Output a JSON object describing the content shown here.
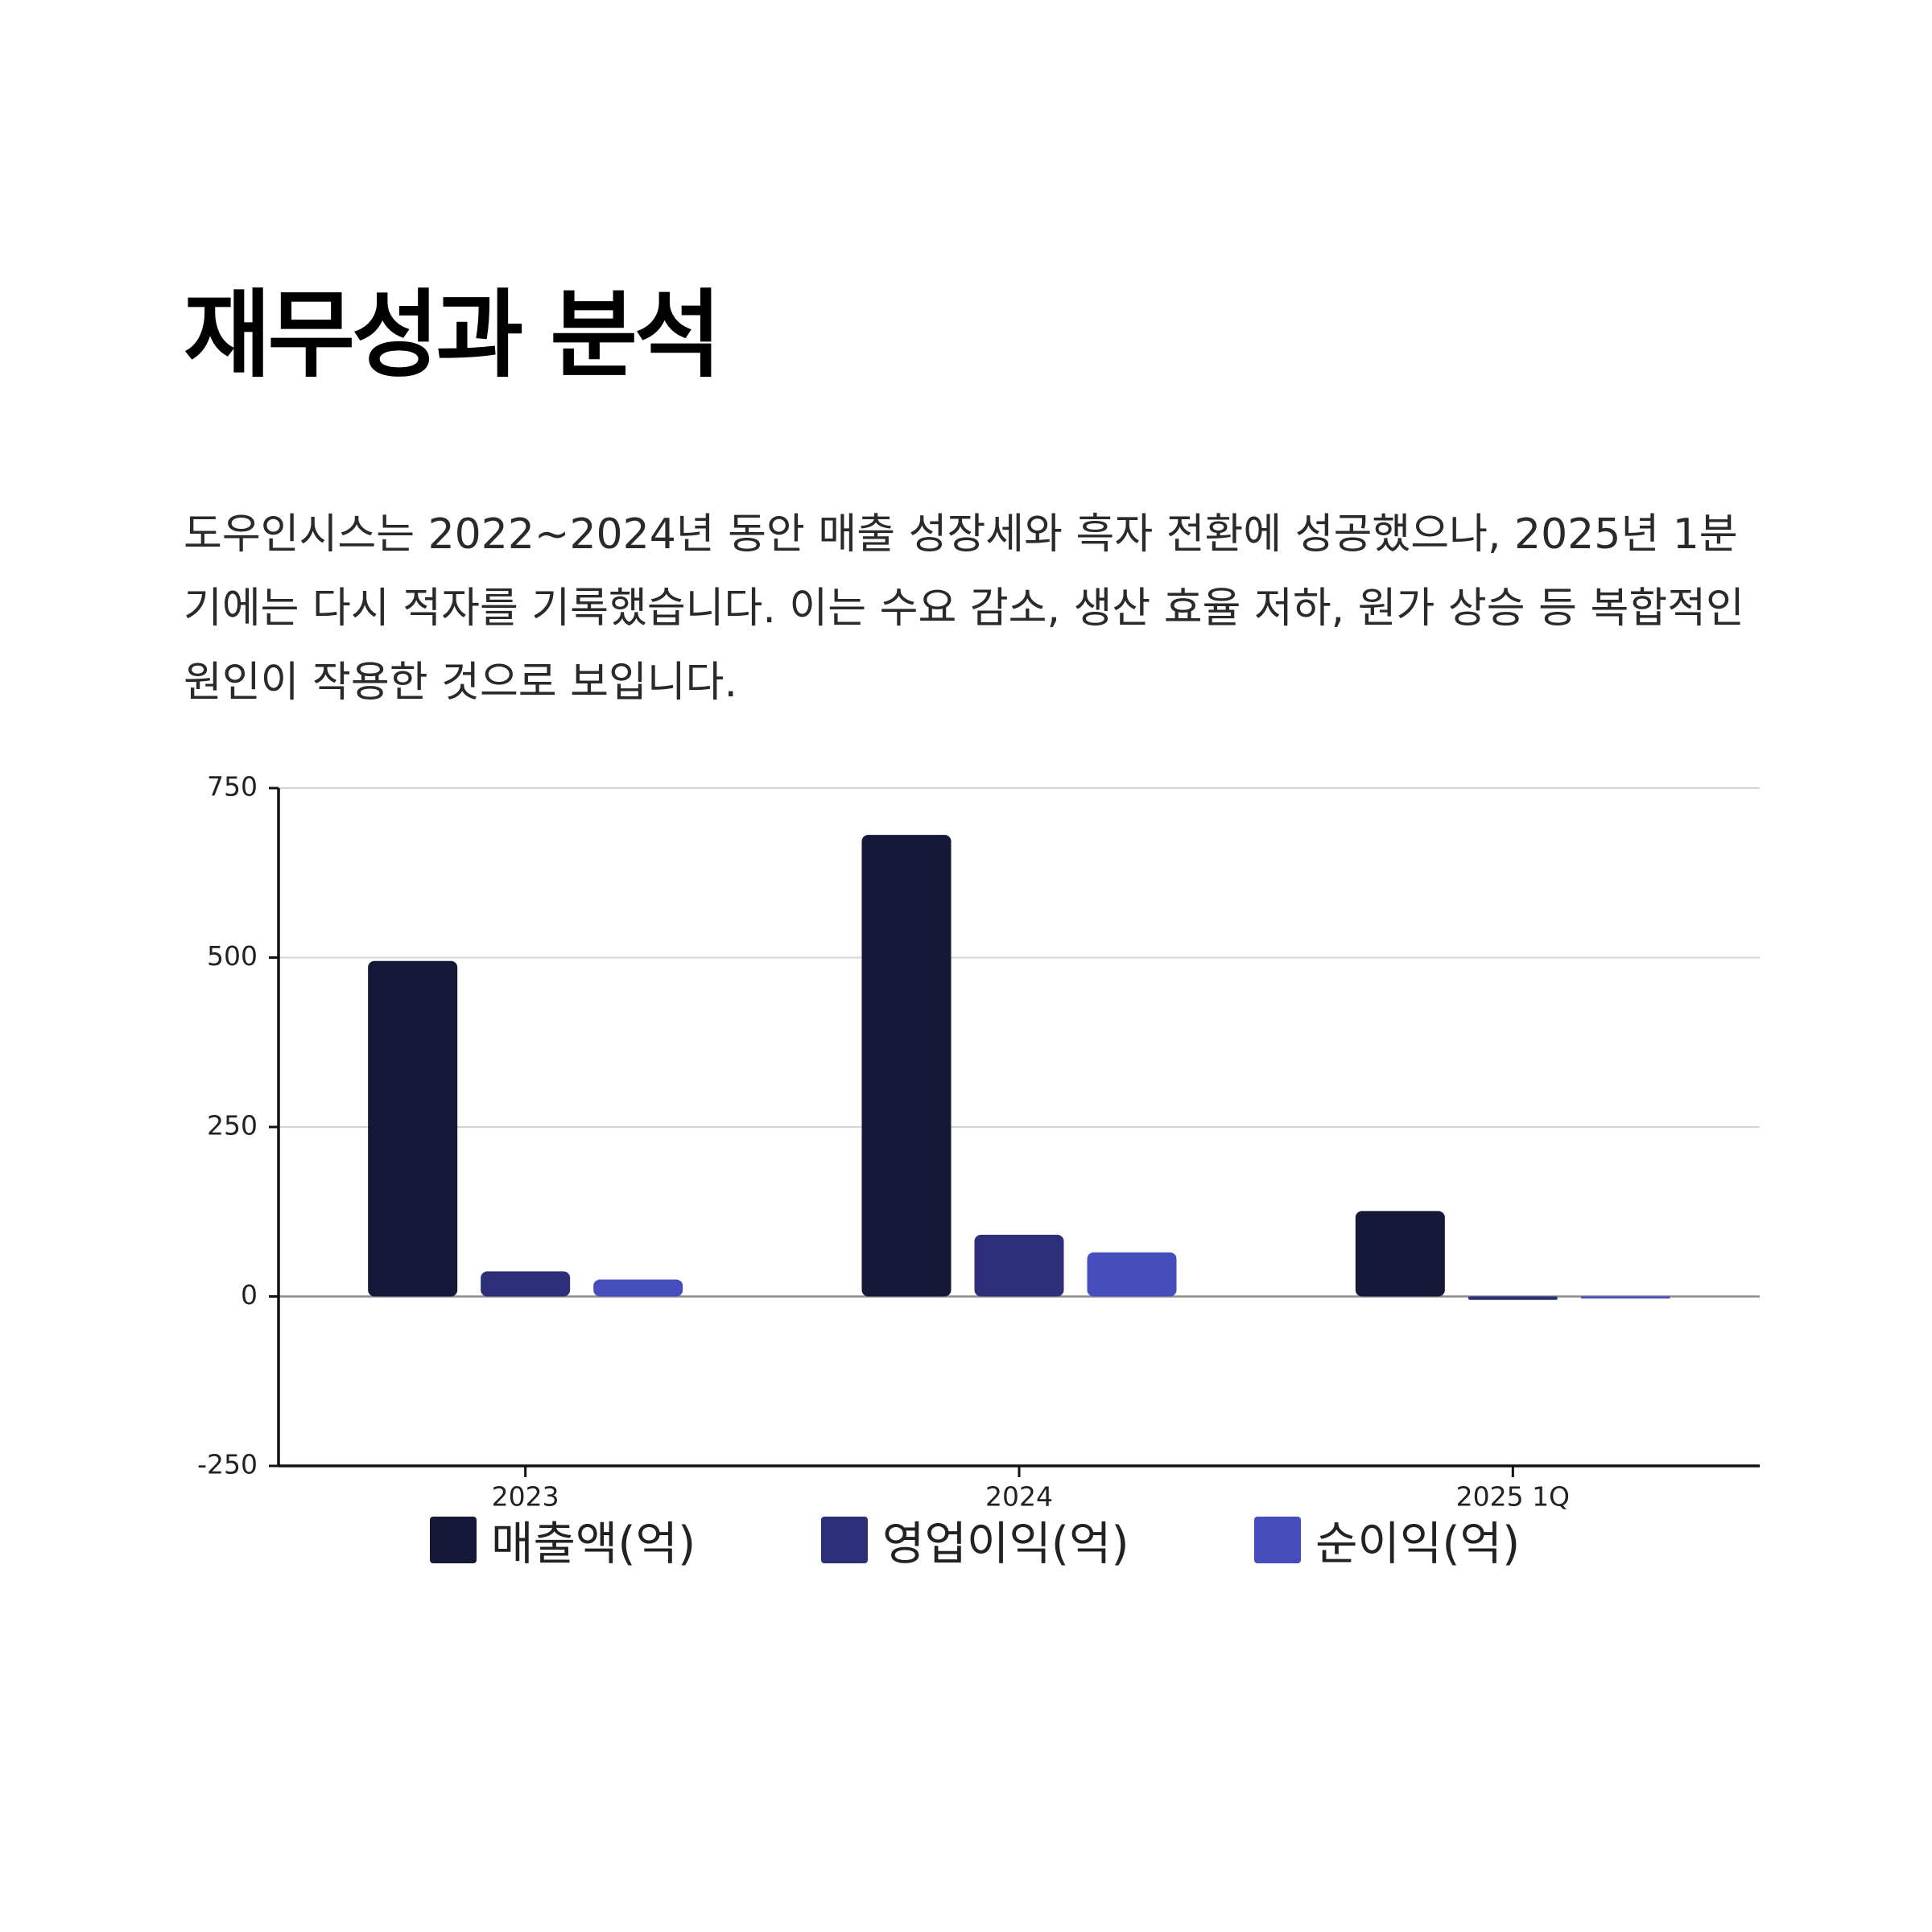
{
  "slide": {
    "title": "재무성과 분석",
    "description": "도우인시스는 2022~2024년 동안 매출 성장세와 흑자 전환에 성공했으나, 2025년 1분기에는 다시 적자를 기록했습니다. 이는 수요 감소, 생산 효율 저하, 원가 상승 등 복합적인 원인이 작용한 것으로 보입니다."
  },
  "chart_data": {
    "type": "bar",
    "title": "",
    "xlabel": "",
    "ylabel": "",
    "categories": [
      "2023",
      "2024",
      "2025 1Q"
    ],
    "series": [
      {
        "name": "매출액(억)",
        "values": [
          495,
          681,
          126
        ],
        "color": "#161838"
      },
      {
        "name": "영업이익(억)",
        "values": [
          37,
          91,
          -5
        ],
        "color": "#2d2f79"
      },
      {
        "name": "순이익(억)",
        "values": [
          25,
          65,
          -3
        ],
        "color": "#464ebe"
      }
    ],
    "ylim": [
      -250,
      750
    ],
    "yticks": [
      750,
      500,
      250,
      0,
      -250
    ],
    "grid": true,
    "legend": "bottom"
  }
}
